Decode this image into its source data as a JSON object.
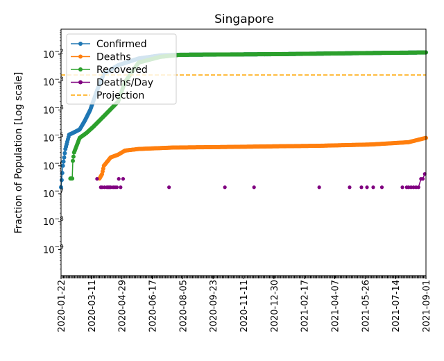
{
  "chart_data": {
    "type": "line",
    "title": "Singapore",
    "xlabel": "",
    "ylabel": "Fraction of Population [Log scale]",
    "yscale": "log",
    "ylim": [
      1e-10,
      0.08
    ],
    "x_start_date": "2020-01-22",
    "x_range_days": [
      0,
      588
    ],
    "x_tick_labels": [
      "2020-01-22",
      "2020-03-11",
      "2020-04-29",
      "2020-06-17",
      "2020-08-05",
      "2020-09-23",
      "2020-11-11",
      "2020-12-30",
      "2021-02-17",
      "2021-04-07",
      "2021-05-26",
      "2021-07-14",
      "2021-09-01"
    ],
    "y_ticks": [
      {
        "base": "10",
        "exp": "−2",
        "value": 0.01
      },
      {
        "base": "10",
        "exp": "−3",
        "value": 0.001
      },
      {
        "base": "10",
        "exp": "−4",
        "value": 0.0001
      },
      {
        "base": "10",
        "exp": "−5",
        "value": 1e-05
      },
      {
        "base": "10",
        "exp": "−6",
        "value": 1e-06
      },
      {
        "base": "10",
        "exp": "−7",
        "value": 1e-07
      },
      {
        "base": "10",
        "exp": "−8",
        "value": 1e-08
      },
      {
        "base": "10",
        "exp": "−9",
        "value": 1e-09
      }
    ],
    "legend_position": "upper-left",
    "series": [
      {
        "name": "Confirmed",
        "color": "#1f77b4",
        "keypoints_day_value": [
          [
            0,
            1.7e-07
          ],
          [
            3,
            1e-06
          ],
          [
            7,
            4e-06
          ],
          [
            13,
            1.3e-05
          ],
          [
            19,
            1.5e-05
          ],
          [
            30,
            2e-05
          ],
          [
            38,
            4e-05
          ],
          [
            47,
            0.0001
          ],
          [
            58,
            0.0005
          ],
          [
            69,
            0.002
          ],
          [
            92,
            0.004
          ],
          [
            125,
            0.007
          ],
          [
            160,
            0.009
          ],
          [
            192,
            0.0095
          ],
          [
            350,
            0.01
          ],
          [
            500,
            0.011
          ],
          [
            588,
            0.0115
          ]
        ]
      },
      {
        "name": "Deaths",
        "color": "#ff7f0e",
        "keypoints_day_value": [
          [
            62,
            3.5e-07
          ],
          [
            66,
            5e-07
          ],
          [
            69,
            1e-06
          ],
          [
            80,
            2e-06
          ],
          [
            92,
            2.5e-06
          ],
          [
            103,
            3.5e-06
          ],
          [
            125,
            4e-06
          ],
          [
            180,
            4.5e-06
          ],
          [
            260,
            4.7e-06
          ],
          [
            350,
            5e-06
          ],
          [
            415,
            5.2e-06
          ],
          [
            500,
            5.8e-06
          ],
          [
            560,
            7e-06
          ],
          [
            588,
            1e-05
          ]
        ]
      },
      {
        "name": "Recovered",
        "color": "#2ca02c",
        "keypoints_day_value": [
          [
            15,
            3.5e-07
          ],
          [
            18,
            3.5e-07
          ],
          [
            19,
            1.5e-06
          ],
          [
            21,
            3e-06
          ],
          [
            30,
            1e-05
          ],
          [
            41,
            1.5e-05
          ],
          [
            52,
            2.5e-05
          ],
          [
            69,
            6e-05
          ],
          [
            92,
            0.0002
          ],
          [
            103,
            0.001
          ],
          [
            125,
            0.005
          ],
          [
            160,
            0.008
          ],
          [
            192,
            0.0095
          ],
          [
            350,
            0.01
          ],
          [
            500,
            0.011
          ],
          [
            588,
            0.0115
          ]
        ]
      },
      {
        "name": "Deaths/Day",
        "color": "#800080",
        "points_day_value": [
          [
            58,
            3.4e-07
          ],
          [
            64,
            1.7e-07
          ],
          [
            66,
            1.7e-07
          ],
          [
            70,
            1.7e-07
          ],
          [
            74,
            1.7e-07
          ],
          [
            76,
            1.7e-07
          ],
          [
            78,
            1.7e-07
          ],
          [
            80,
            1.7e-07
          ],
          [
            84,
            1.7e-07
          ],
          [
            87,
            1.7e-07
          ],
          [
            90,
            1.7e-07
          ],
          [
            93,
            3.4e-07
          ],
          [
            96,
            1.7e-07
          ],
          [
            100,
            3.4e-07
          ],
          [
            174,
            1.7e-07
          ],
          [
            264,
            1.7e-07
          ],
          [
            311,
            1.7e-07
          ],
          [
            416,
            1.7e-07
          ],
          [
            465,
            1.7e-07
          ],
          [
            484,
            1.7e-07
          ],
          [
            493,
            1.7e-07
          ],
          [
            503,
            1.7e-07
          ],
          [
            517,
            1.7e-07
          ],
          [
            550,
            1.7e-07
          ],
          [
            557,
            1.7e-07
          ],
          [
            560,
            1.7e-07
          ],
          [
            564,
            1.7e-07
          ],
          [
            568,
            1.7e-07
          ],
          [
            572,
            1.7e-07
          ],
          [
            576,
            1.7e-07
          ],
          [
            580,
            3.4e-07
          ],
          [
            583,
            3.4e-07
          ],
          [
            586,
            5.1e-07
          ]
        ]
      },
      {
        "name": "Projection",
        "color": "#ffa500",
        "dashed": true,
        "value": 0.0018
      }
    ]
  }
}
